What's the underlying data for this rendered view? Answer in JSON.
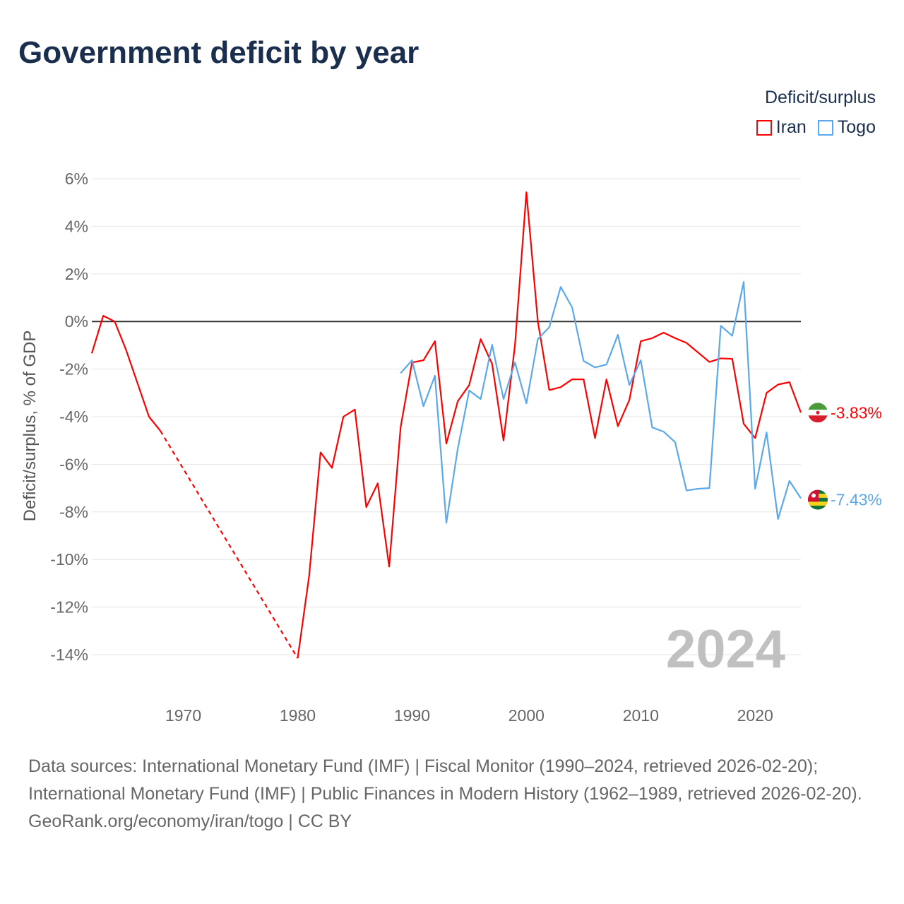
{
  "title": "Government deficit by year",
  "legend": {
    "title": "Deficit/surplus",
    "items": [
      {
        "label": "Iran",
        "color": "#ff0000"
      },
      {
        "label": "Togo",
        "color": "#5ba8ea"
      }
    ]
  },
  "year_watermark": "2024",
  "footer": {
    "sources": "Data sources: International Monetary Fund (IMF) | Fiscal Monitor (1990–2024, retrieved 2026-02-20); International Monetary Fund (IMF) | Public Finances in Modern History (1962–1989, retrieved 2026-02-20).",
    "credit": "GeoRank.org/economy/iran/togo | CC BY"
  },
  "chart_data": {
    "type": "line",
    "title": "Government deficit by year",
    "xlabel": "",
    "ylabel": "Deficit/surplus, % of GDP",
    "xlim": [
      1962,
      2024
    ],
    "ylim": [
      -14,
      6
    ],
    "xticks": [
      1970,
      1980,
      1990,
      2000,
      2010,
      2020
    ],
    "xtick_labels": [
      "1970",
      "1980",
      "1990",
      "2000",
      "2010",
      "2020"
    ],
    "yticks": [
      6,
      4,
      2,
      0,
      -2,
      -4,
      -6,
      -8,
      -10,
      -12,
      -14
    ],
    "ytick_labels": [
      "6%",
      "4%",
      "2%",
      "0%",
      "-2%",
      "-4%",
      "-6%",
      "-8%",
      "-10%",
      "-12%",
      "-14%"
    ],
    "grid": true,
    "legend_position": "top-right",
    "series": [
      {
        "name": "Iran",
        "color": "#ff0000",
        "end_label": "-3.83%",
        "start_year": 1962,
        "values": [
          -1.34,
          0.24,
          0,
          -1.2,
          -2.6,
          -4.0,
          -4.6,
          null,
          null,
          null,
          null,
          null,
          null,
          null,
          null,
          null,
          null,
          null,
          -14.15,
          -10.7,
          -5.5,
          -6.15,
          -4.0,
          -3.7,
          -7.8,
          -6.8,
          -10.3,
          -4.45,
          -1.72,
          -1.63,
          -0.83,
          -5.13,
          -3.35,
          -2.67,
          -0.74,
          -1.78,
          -5.0,
          -1.0,
          5.43,
          0.0,
          -2.88,
          -2.76,
          -2.43,
          -2.43,
          -4.9,
          -2.43,
          -4.4,
          -3.3,
          -0.83,
          -0.7,
          -0.47,
          -0.7,
          -0.9,
          -1.3,
          -1.7,
          -1.55,
          -1.57,
          -4.3,
          -4.9,
          -3.0,
          -2.65,
          -2.55,
          -3.83
        ]
      },
      {
        "name": "Togo",
        "color": "#5ba8ea",
        "end_label": "-7.43%",
        "start_year": 1989,
        "values": [
          -2.17,
          -1.63,
          -3.56,
          -2.28,
          -8.46,
          -5.34,
          -2.9,
          -3.26,
          -0.98,
          -3.26,
          -1.72,
          -3.44,
          -0.74,
          -0.24,
          1.45,
          0.59,
          -1.66,
          -1.93,
          -1.81,
          -0.56,
          -2.67,
          -1.63,
          -4.45,
          -4.63,
          -5.07,
          -7.1,
          -7.03,
          -7.0,
          -0.18,
          -0.6,
          1.66,
          -7.03,
          -4.66,
          -8.3,
          -6.7,
          -7.43
        ]
      }
    ]
  }
}
